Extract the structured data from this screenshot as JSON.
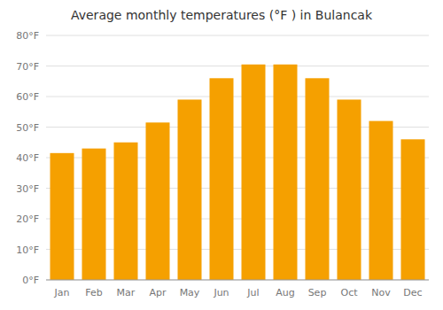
{
  "chart_data": {
    "type": "bar",
    "title": "Average monthly temperatures (°F ) in Bulancak",
    "categories": [
      "Jan",
      "Feb",
      "Mar",
      "Apr",
      "May",
      "Jun",
      "Jul",
      "Aug",
      "Sep",
      "Oct",
      "Nov",
      "Dec"
    ],
    "values": [
      41.5,
      43.0,
      45.0,
      51.5,
      59.0,
      66.0,
      70.5,
      70.5,
      66.0,
      59.0,
      52.0,
      46.0
    ],
    "color": "#F5A000",
    "ylim": [
      0,
      80
    ],
    "yticks": [
      {
        "value": 0,
        "label": "0°F"
      },
      {
        "value": 10,
        "label": "10°F"
      },
      {
        "value": 20,
        "label": "20°F"
      },
      {
        "value": 30,
        "label": "30°F"
      },
      {
        "value": 40,
        "label": "40°F"
      },
      {
        "value": 50,
        "label": "50°F"
      },
      {
        "value": 60,
        "label": "60°F"
      },
      {
        "value": 70,
        "label": "70°F"
      },
      {
        "value": 80,
        "label": "80°F"
      }
    ],
    "grid": true
  }
}
